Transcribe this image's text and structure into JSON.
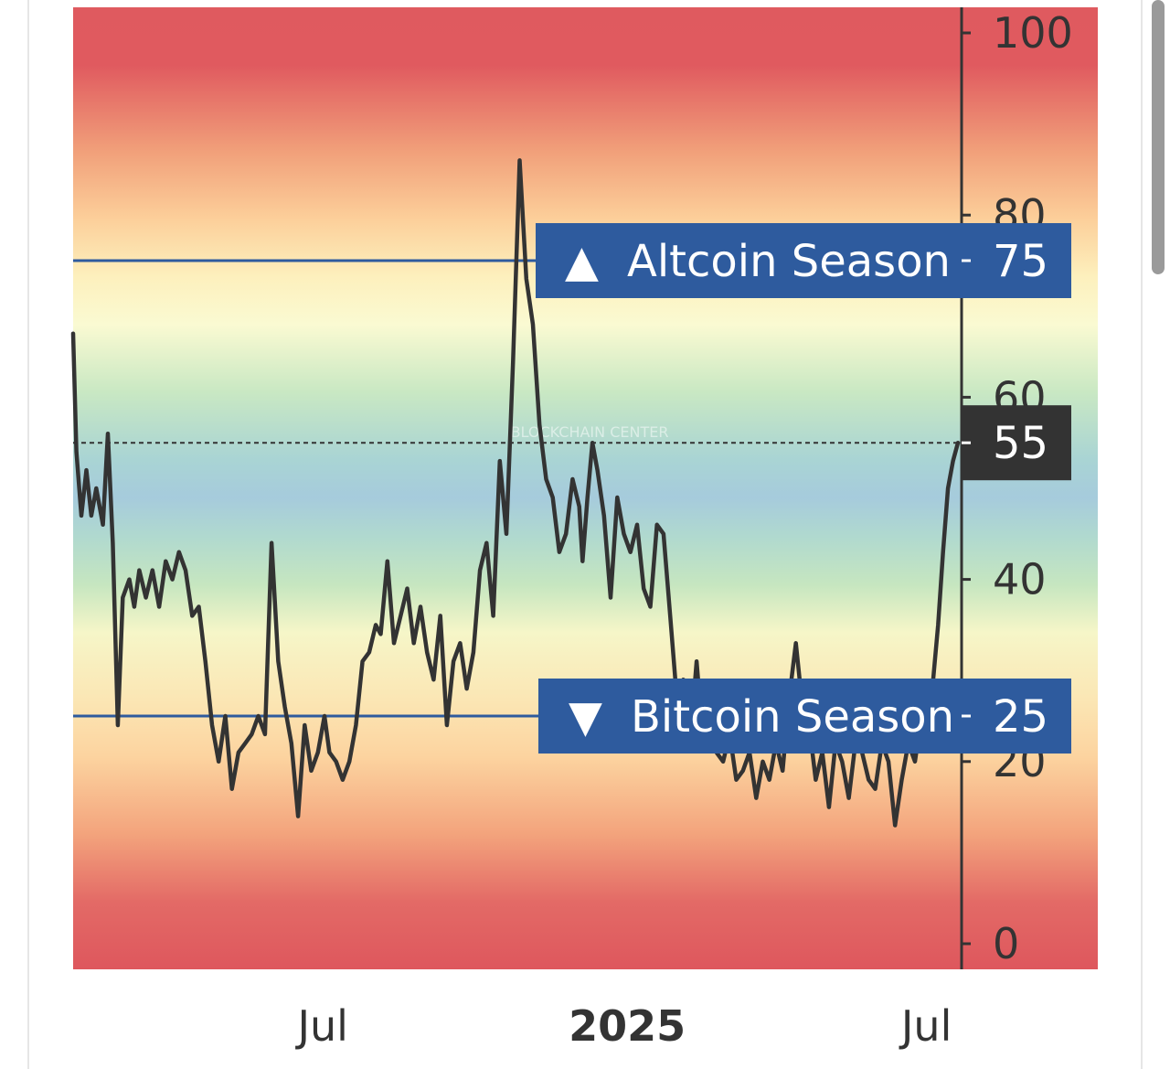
{
  "chart_data": {
    "type": "line",
    "title": "",
    "xlabel": "",
    "ylabel": "",
    "ylim": [
      0,
      100
    ],
    "y_ticks": [
      "100",
      "80",
      "60",
      "40",
      "20",
      "0"
    ],
    "y_tick_values": [
      100,
      80,
      60,
      40,
      20,
      0
    ],
    "x_ticks": [
      {
        "label": "Jul",
        "date": "2024-07-01",
        "bold": false
      },
      {
        "label": "2025",
        "date": "2025-01-01",
        "bold": true
      },
      {
        "label": "Jul",
        "date": "2025-07-01",
        "bold": false
      }
    ],
    "x_range": [
      "2024-02-01",
      "2025-07-20"
    ],
    "grid": false,
    "background": "vertical gradient bands: red at 0 and 100, orange, yellow near 75, green near 40, blue near 50",
    "reference_lines": [
      {
        "label": "Altcoin Season",
        "value": 75,
        "value_label": "75",
        "marker": "▲",
        "color": "#2e5b9e"
      },
      {
        "label": "Bitcoin Season",
        "value": 25,
        "value_label": "25",
        "marker": "▼",
        "color": "#2e5b9e"
      }
    ],
    "current_value": {
      "value": 55,
      "label": "55",
      "color": "#333333"
    },
    "line_color": "#333333",
    "series": [
      {
        "x": [
          "2024-02-01",
          "2024-02-03",
          "2024-02-06",
          "2024-02-09",
          "2024-02-12",
          "2024-02-15",
          "2024-02-19",
          "2024-02-22",
          "2024-02-25",
          "2024-02-28",
          "2024-03-02",
          "2024-03-06",
          "2024-03-09",
          "2024-03-12",
          "2024-03-16",
          "2024-03-20",
          "2024-03-24",
          "2024-03-28",
          "2024-04-01",
          "2024-04-05",
          "2024-04-09",
          "2024-04-13",
          "2024-04-17",
          "2024-04-21",
          "2024-04-25",
          "2024-04-29",
          "2024-05-03",
          "2024-05-07",
          "2024-05-11",
          "2024-05-15",
          "2024-05-19",
          "2024-05-23",
          "2024-05-27",
          "2024-05-31",
          "2024-06-04",
          "2024-06-08",
          "2024-06-12",
          "2024-06-16",
          "2024-06-20",
          "2024-06-24",
          "2024-06-28",
          "2024-07-02",
          "2024-07-05",
          "2024-07-09",
          "2024-07-13",
          "2024-07-17",
          "2024-07-21",
          "2024-07-25",
          "2024-07-29",
          "2024-08-02",
          "2024-08-05",
          "2024-08-09",
          "2024-08-13",
          "2024-08-17",
          "2024-08-21",
          "2024-08-25",
          "2024-08-29",
          "2024-09-02",
          "2024-09-06",
          "2024-09-10",
          "2024-09-14",
          "2024-09-18",
          "2024-09-22",
          "2024-09-26",
          "2024-09-30",
          "2024-10-04",
          "2024-10-08",
          "2024-10-12",
          "2024-10-16",
          "2024-10-20",
          "2024-10-24",
          "2024-10-28",
          "2024-11-01",
          "2024-11-05",
          "2024-11-09",
          "2024-11-13",
          "2024-11-17",
          "2024-11-21",
          "2024-11-25",
          "2024-11-29",
          "2024-12-03",
          "2024-12-05",
          "2024-12-08",
          "2024-12-11",
          "2024-12-14",
          "2024-12-18",
          "2024-12-22",
          "2024-12-26",
          "2024-12-30",
          "2025-01-03",
          "2025-01-07",
          "2025-01-11",
          "2025-01-15",
          "2025-01-19",
          "2025-01-23",
          "2025-01-27",
          "2025-01-31",
          "2025-02-04",
          "2025-02-08",
          "2025-02-12",
          "2025-02-16",
          "2025-02-20",
          "2025-02-24",
          "2025-02-28",
          "2025-03-04",
          "2025-03-08",
          "2025-03-12",
          "2025-03-16",
          "2025-03-20",
          "2025-03-24",
          "2025-03-28",
          "2025-04-01",
          "2025-04-05",
          "2025-04-09",
          "2025-04-13",
          "2025-04-17",
          "2025-04-21",
          "2025-04-25",
          "2025-04-29",
          "2025-05-03",
          "2025-05-07",
          "2025-05-11",
          "2025-05-15",
          "2025-05-19",
          "2025-05-23",
          "2025-05-27",
          "2025-05-31",
          "2025-06-04",
          "2025-06-08",
          "2025-06-12",
          "2025-06-16",
          "2025-06-20",
          "2025-06-24",
          "2025-06-28",
          "2025-07-02",
          "2025-07-05",
          "2025-07-08",
          "2025-07-11",
          "2025-07-14",
          "2025-07-17",
          "2025-07-20"
        ],
        "values": [
          67,
          54,
          47,
          52,
          47,
          50,
          46,
          56,
          44,
          24,
          38,
          40,
          37,
          41,
          38,
          41,
          37,
          42,
          40,
          43,
          41,
          36,
          37,
          31,
          24,
          20,
          25,
          17,
          21,
          22,
          23,
          25,
          23,
          44,
          31,
          26,
          22,
          14,
          24,
          19,
          21,
          25,
          21,
          20,
          18,
          20,
          24,
          31,
          32,
          35,
          34,
          42,
          33,
          36,
          39,
          33,
          37,
          32,
          29,
          36,
          24,
          31,
          33,
          28,
          32,
          41,
          44,
          36,
          53,
          45,
          64,
          86,
          73,
          68,
          57,
          51,
          49,
          43,
          45,
          51,
          48,
          42,
          49,
          55,
          52,
          47,
          38,
          49,
          45,
          43,
          46,
          39,
          37,
          46,
          45,
          36,
          27,
          29,
          22,
          31,
          22,
          26,
          21,
          20,
          23,
          18,
          19,
          21,
          16,
          20,
          18,
          22,
          19,
          27,
          33,
          26,
          24,
          18,
          21,
          15,
          22,
          20,
          16,
          22,
          21,
          18,
          17,
          22,
          20,
          13,
          18,
          22,
          20,
          25,
          27,
          29,
          35,
          43,
          50,
          53,
          55
        ],
        "end_value": 55
      }
    ]
  },
  "watermark": "BLOCKCHAIN CENTER"
}
